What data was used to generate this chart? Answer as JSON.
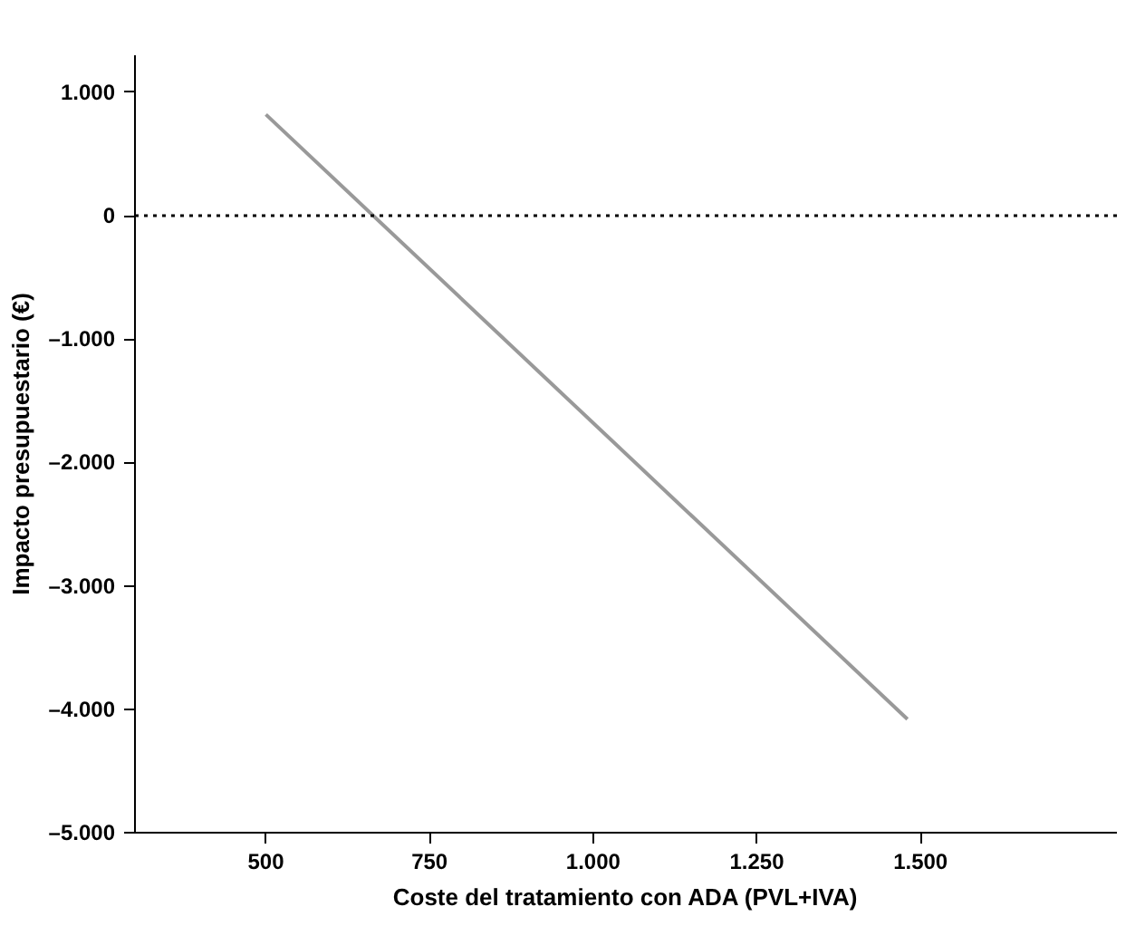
{
  "chart_data": {
    "type": "line",
    "xlabel": "Coste del tratamiento con ADA (PVL+IVA)",
    "ylabel": "Impacto presupuestario (€)",
    "x": [
      500,
      1480
    ],
    "series": [
      {
        "color": "#999999",
        "values": [
          820,
          -4080
        ]
      }
    ],
    "xlim": [
      300,
      1800
    ],
    "ylim": [
      -5000,
      1300
    ],
    "xticks": [
      {
        "value": 500,
        "label": "500"
      },
      {
        "value": 750,
        "label": "750"
      },
      {
        "value": 1000,
        "label": "1.000"
      },
      {
        "value": 1250,
        "label": "1.250"
      },
      {
        "value": 1500,
        "label": "1.500"
      }
    ],
    "yticks": [
      {
        "value": 1000,
        "label": "1.000"
      },
      {
        "value": 0,
        "label": "0"
      },
      {
        "value": -1000,
        "label": "–1.000"
      },
      {
        "value": -2000,
        "label": "–2.000"
      },
      {
        "value": -3000,
        "label": "–3.000"
      },
      {
        "value": -4000,
        "label": "–4.000"
      },
      {
        "value": -5000,
        "label": "–5.000"
      }
    ],
    "ref_lines": [
      {
        "axis": "y",
        "value": 0,
        "color": "#000000",
        "line_style": "dotted"
      }
    ],
    "grid": false,
    "marker": "none",
    "line_style": "solid"
  }
}
